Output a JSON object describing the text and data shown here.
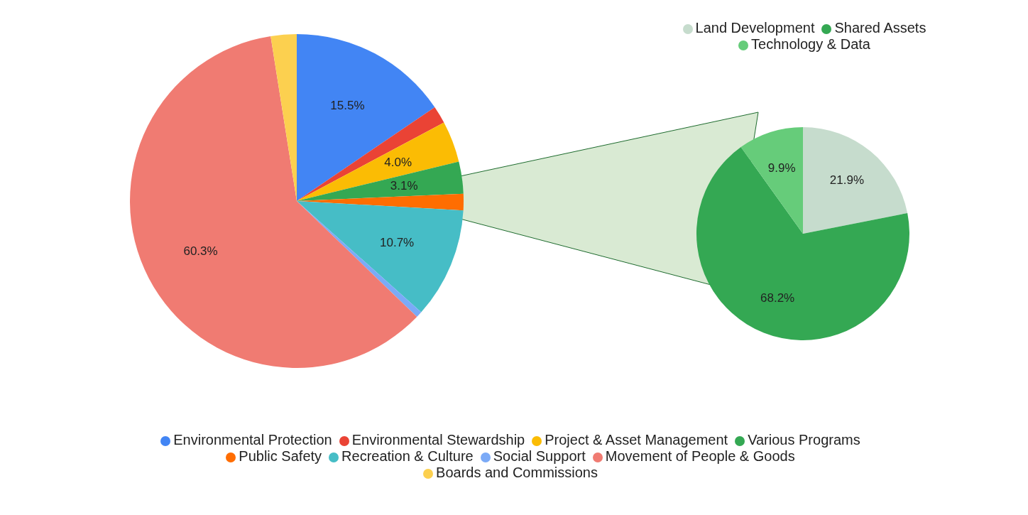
{
  "chart_data": [
    {
      "type": "pie",
      "categories": [
        "Environmental Protection",
        "Environmental Stewardship",
        "Project & Asset Management",
        "Various Programs",
        "Public Safety",
        "Recreation & Culture",
        "Social Support",
        "Movement of People & Goods",
        "Boards and Commissions"
      ],
      "values": [
        15.5,
        1.7,
        4.0,
        3.1,
        1.6,
        10.7,
        0.6,
        60.3,
        2.5
      ],
      "colors": [
        "#4285f4",
        "#ea4335",
        "#fbbc04",
        "#34a853",
        "#ff6d01",
        "#46bdc6",
        "#7baaf7",
        "#f07b72",
        "#fcd04f"
      ],
      "value_labels": [
        "15.5%",
        null,
        "4.0%",
        "3.1%",
        null,
        "10.7%",
        null,
        "60.3%",
        null
      ],
      "legend": "bottom"
    },
    {
      "type": "pie",
      "categories": [
        "Land Development",
        "Shared Assets",
        "Technology & Data"
      ],
      "values": [
        21.9,
        68.2,
        9.9
      ],
      "colors": [
        "#c6dccd",
        "#34a853",
        "#66cc7a"
      ],
      "value_labels": [
        "21.9%",
        "68.2%",
        "9.9%"
      ],
      "legend": "top"
    }
  ]
}
